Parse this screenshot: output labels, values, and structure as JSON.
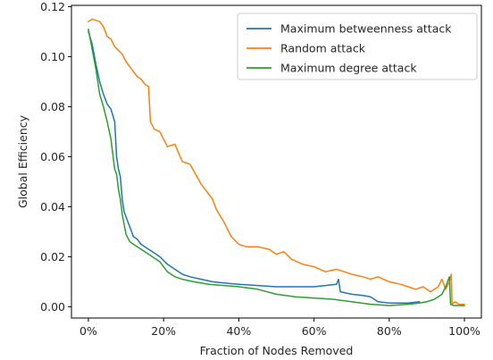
{
  "chart_data": {
    "type": "line",
    "title": "",
    "xlabel": "Fraction of Nodes Removed",
    "ylabel": "Global Efficiency",
    "xlim": [
      -0.045,
      1.045
    ],
    "ylim": [
      -0.0045,
      0.1205
    ],
    "x_ticks": [
      {
        "value": 0.0,
        "label": "0%"
      },
      {
        "value": 0.2,
        "label": "20%"
      },
      {
        "value": 0.4,
        "label": "40%"
      },
      {
        "value": 0.6,
        "label": "60%"
      },
      {
        "value": 0.8,
        "label": "80%"
      },
      {
        "value": 1.0,
        "label": "100%"
      }
    ],
    "y_ticks": [
      {
        "value": 0.0,
        "label": "0.00"
      },
      {
        "value": 0.02,
        "label": "0.02"
      },
      {
        "value": 0.04,
        "label": "0.04"
      },
      {
        "value": 0.06,
        "label": "0.06"
      },
      {
        "value": 0.08,
        "label": "0.08"
      },
      {
        "value": 0.1,
        "label": "0.10"
      },
      {
        "value": 0.12,
        "label": "0.12"
      }
    ],
    "grid": false,
    "legend_position": "upper right",
    "series": [
      {
        "name": "Maximum betweenness attack",
        "color": "#1f77b4",
        "points": [
          [
            0.0,
            0.11
          ],
          [
            0.01,
            0.105
          ],
          [
            0.02,
            0.097
          ],
          [
            0.03,
            0.09
          ],
          [
            0.04,
            0.085
          ],
          [
            0.05,
            0.081
          ],
          [
            0.06,
            0.079
          ],
          [
            0.07,
            0.074
          ],
          [
            0.075,
            0.06
          ],
          [
            0.08,
            0.055
          ],
          [
            0.085,
            0.052
          ],
          [
            0.09,
            0.043
          ],
          [
            0.095,
            0.038
          ],
          [
            0.1,
            0.036
          ],
          [
            0.11,
            0.032
          ],
          [
            0.12,
            0.028
          ],
          [
            0.13,
            0.027
          ],
          [
            0.14,
            0.025
          ],
          [
            0.15,
            0.024
          ],
          [
            0.17,
            0.022
          ],
          [
            0.19,
            0.02
          ],
          [
            0.21,
            0.017
          ],
          [
            0.23,
            0.015
          ],
          [
            0.25,
            0.013
          ],
          [
            0.27,
            0.012
          ],
          [
            0.3,
            0.011
          ],
          [
            0.33,
            0.01
          ],
          [
            0.36,
            0.0095
          ],
          [
            0.4,
            0.009
          ],
          [
            0.45,
            0.0085
          ],
          [
            0.5,
            0.008
          ],
          [
            0.55,
            0.008
          ],
          [
            0.6,
            0.008
          ],
          [
            0.63,
            0.0085
          ],
          [
            0.66,
            0.009
          ],
          [
            0.665,
            0.011
          ],
          [
            0.67,
            0.006
          ],
          [
            0.7,
            0.005
          ],
          [
            0.73,
            0.0045
          ],
          [
            0.75,
            0.004
          ],
          [
            0.77,
            0.002
          ],
          [
            0.8,
            0.0015
          ],
          [
            0.85,
            0.0015
          ],
          [
            0.88,
            0.002
          ]
        ]
      },
      {
        "name": "Random attack",
        "color": "#ff7f0e",
        "points": [
          [
            0.0,
            0.114
          ],
          [
            0.01,
            0.115
          ],
          [
            0.03,
            0.114
          ],
          [
            0.04,
            0.112
          ],
          [
            0.05,
            0.108
          ],
          [
            0.06,
            0.107
          ],
          [
            0.07,
            0.104
          ],
          [
            0.09,
            0.101
          ],
          [
            0.1,
            0.098
          ],
          [
            0.11,
            0.096
          ],
          [
            0.12,
            0.094
          ],
          [
            0.13,
            0.092
          ],
          [
            0.14,
            0.091
          ],
          [
            0.15,
            0.089
          ],
          [
            0.16,
            0.088
          ],
          [
            0.165,
            0.074
          ],
          [
            0.175,
            0.071
          ],
          [
            0.19,
            0.07
          ],
          [
            0.2,
            0.067
          ],
          [
            0.21,
            0.064
          ],
          [
            0.23,
            0.065
          ],
          [
            0.25,
            0.058
          ],
          [
            0.27,
            0.057
          ],
          [
            0.3,
            0.049
          ],
          [
            0.33,
            0.043
          ],
          [
            0.34,
            0.039
          ],
          [
            0.36,
            0.034
          ],
          [
            0.38,
            0.028
          ],
          [
            0.4,
            0.025
          ],
          [
            0.42,
            0.024
          ],
          [
            0.45,
            0.024
          ],
          [
            0.48,
            0.023
          ],
          [
            0.5,
            0.021
          ],
          [
            0.52,
            0.022
          ],
          [
            0.54,
            0.019
          ],
          [
            0.57,
            0.017
          ],
          [
            0.6,
            0.016
          ],
          [
            0.63,
            0.014
          ],
          [
            0.66,
            0.015
          ],
          [
            0.68,
            0.014
          ],
          [
            0.7,
            0.013
          ],
          [
            0.73,
            0.012
          ],
          [
            0.75,
            0.011
          ],
          [
            0.77,
            0.012
          ],
          [
            0.8,
            0.01
          ],
          [
            0.83,
            0.009
          ],
          [
            0.85,
            0.008
          ],
          [
            0.87,
            0.007
          ],
          [
            0.89,
            0.008
          ],
          [
            0.91,
            0.006
          ],
          [
            0.93,
            0.008
          ],
          [
            0.94,
            0.011
          ],
          [
            0.95,
            0.007
          ],
          [
            0.96,
            0.01
          ],
          [
            0.965,
            0.013
          ],
          [
            0.967,
            0.001
          ],
          [
            0.975,
            0.002
          ],
          [
            0.985,
            0.001
          ],
          [
            1.0,
            0.001
          ]
        ]
      },
      {
        "name": "Maximum degree attack",
        "color": "#2ca02c",
        "points": [
          [
            0.0,
            0.111
          ],
          [
            0.01,
            0.103
          ],
          [
            0.02,
            0.095
          ],
          [
            0.03,
            0.085
          ],
          [
            0.04,
            0.08
          ],
          [
            0.05,
            0.074
          ],
          [
            0.06,
            0.067
          ],
          [
            0.065,
            0.061
          ],
          [
            0.07,
            0.055
          ],
          [
            0.075,
            0.053
          ],
          [
            0.08,
            0.047
          ],
          [
            0.085,
            0.043
          ],
          [
            0.09,
            0.037
          ],
          [
            0.095,
            0.033
          ],
          [
            0.1,
            0.029
          ],
          [
            0.11,
            0.026
          ],
          [
            0.13,
            0.024
          ],
          [
            0.15,
            0.022
          ],
          [
            0.17,
            0.02
          ],
          [
            0.19,
            0.018
          ],
          [
            0.21,
            0.014
          ],
          [
            0.23,
            0.012
          ],
          [
            0.25,
            0.011
          ],
          [
            0.28,
            0.01
          ],
          [
            0.32,
            0.009
          ],
          [
            0.36,
            0.0085
          ],
          [
            0.4,
            0.008
          ],
          [
            0.45,
            0.007
          ],
          [
            0.5,
            0.005
          ],
          [
            0.55,
            0.004
          ],
          [
            0.6,
            0.0035
          ],
          [
            0.65,
            0.003
          ],
          [
            0.7,
            0.002
          ],
          [
            0.75,
            0.001
          ],
          [
            0.8,
            0.0005
          ],
          [
            0.85,
            0.001
          ],
          [
            0.88,
            0.0015
          ],
          [
            0.9,
            0.002
          ],
          [
            0.92,
            0.003
          ],
          [
            0.94,
            0.005
          ],
          [
            0.95,
            0.008
          ],
          [
            0.96,
            0.012
          ],
          [
            0.963,
            0.001
          ],
          [
            0.97,
            0.0005
          ],
          [
            0.98,
            0.0005
          ],
          [
            1.0,
            0.0005
          ]
        ]
      }
    ]
  }
}
